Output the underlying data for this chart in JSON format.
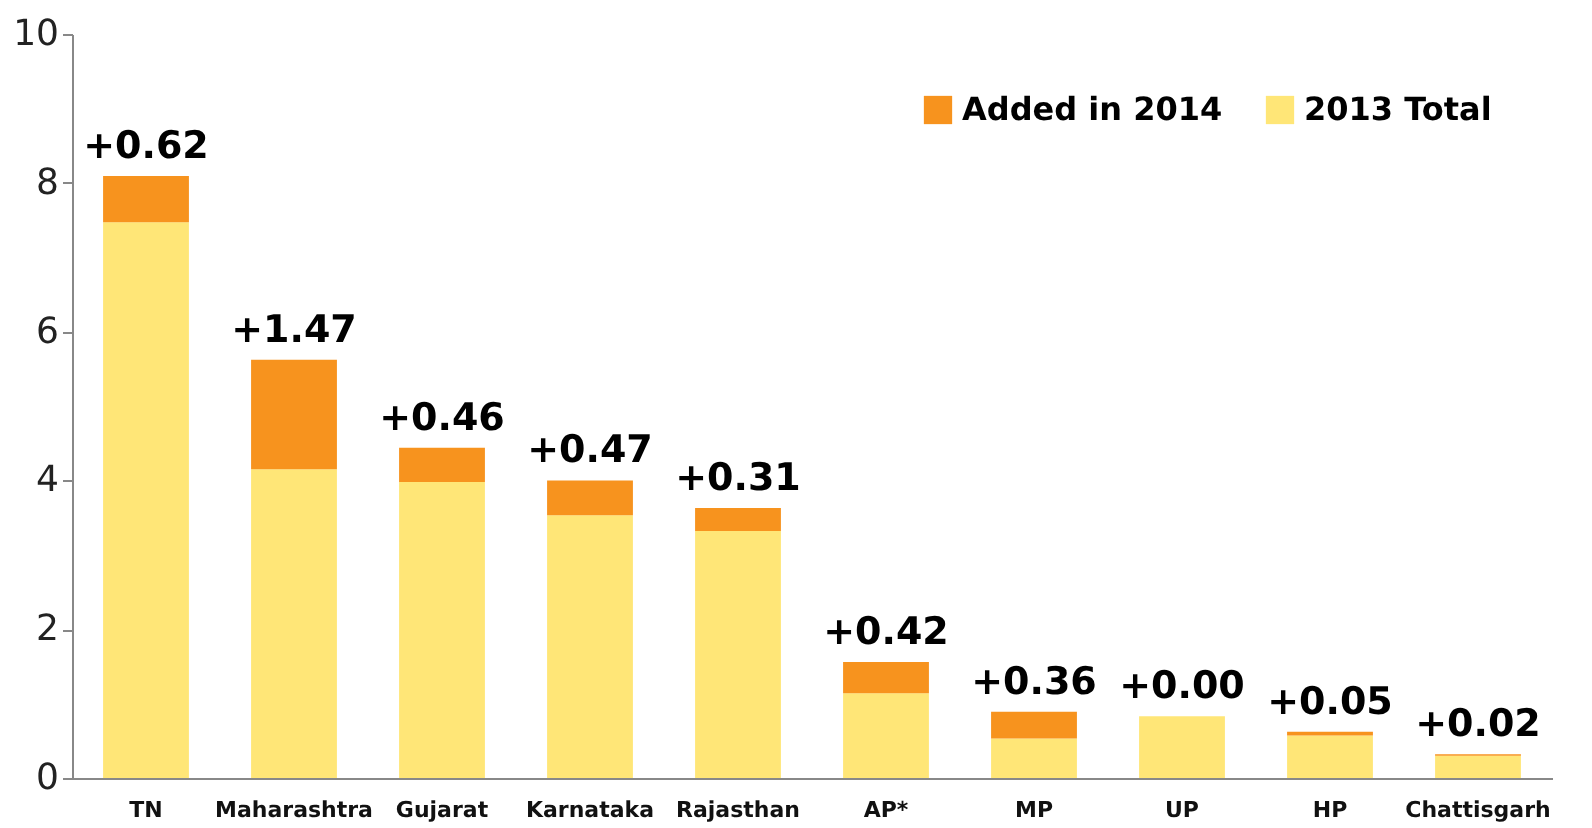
{
  "chart_data": {
    "type": "bar",
    "stacked": true,
    "categories": [
      "TN",
      "Maharashtra",
      "Gujarat",
      "Karnataka",
      "Rajasthan",
      "AP*",
      "MP",
      "UP",
      "HP",
      "Chattisgarh"
    ],
    "series": [
      {
        "name": "2013 Total",
        "color": "#ffe677",
        "values": [
          7.47,
          4.15,
          3.98,
          3.53,
          3.32,
          1.14,
          0.53,
          0.83,
          0.57,
          0.3
        ]
      },
      {
        "name": "Added in 2014",
        "color": "#f7931e",
        "values": [
          0.62,
          1.47,
          0.46,
          0.47,
          0.31,
          0.42,
          0.36,
          0.0,
          0.05,
          0.02
        ],
        "value_labels": [
          "+0.62",
          "+1.47",
          "+0.46",
          "+0.47",
          "+0.31",
          "+0.42",
          "+0.36",
          "+0.00",
          "+0.05",
          "+0.02"
        ]
      }
    ],
    "ylim": [
      0,
      10
    ],
    "yticks": [
      0,
      2,
      4,
      6,
      8,
      10
    ],
    "grid": false,
    "legend": "top right"
  }
}
